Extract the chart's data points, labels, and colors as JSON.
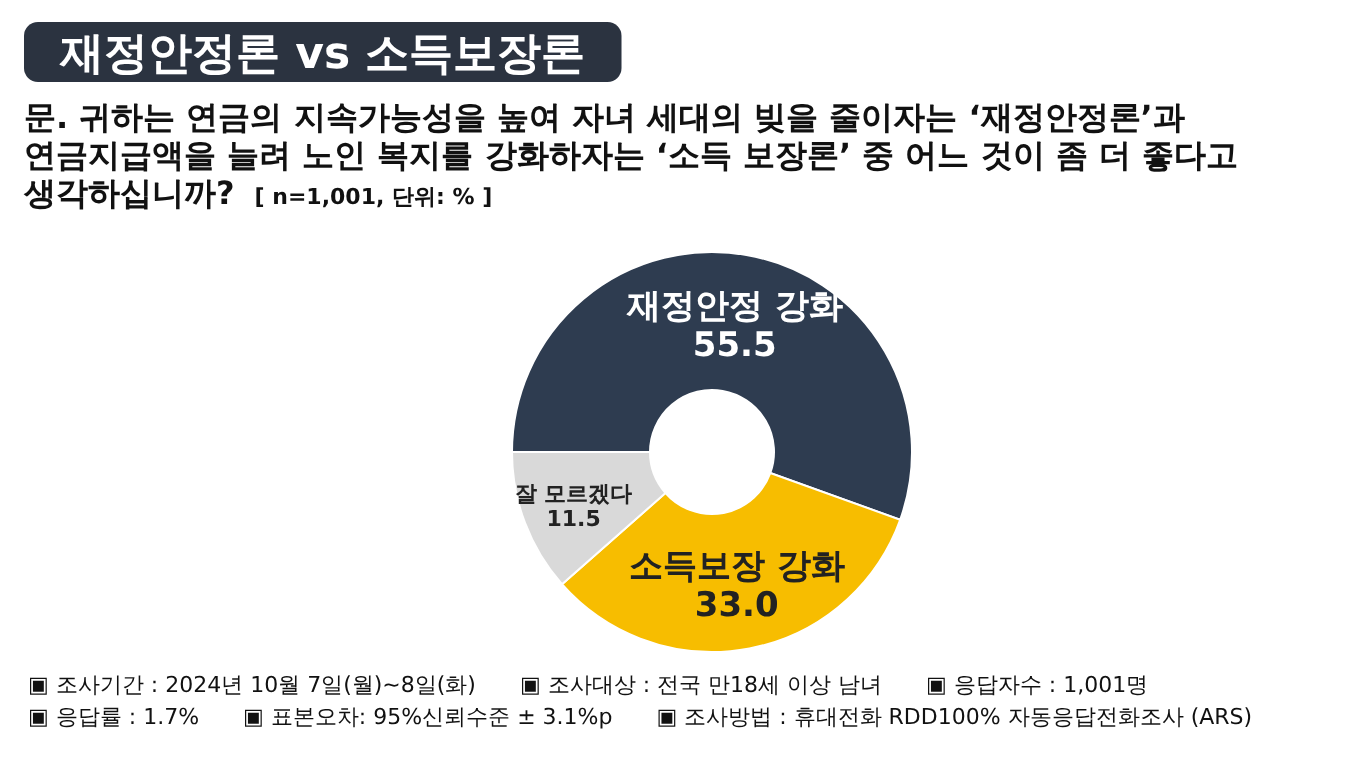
{
  "chart_data": {
    "type": "donut",
    "title": "재정안정론 vs 소득보장론",
    "subtitle": "문. 귀하는 연금의 지속가능성을 높여 자녀 세대의 빚을 줄이자는 ‘재정안정론’과 연금지급액을 늘려 노인 복지를 강화하자는 ‘소득 보장론’ 중 어느 것이 좀 더 좋다고 생각하십니까?",
    "categories": [
      "재정안정 강화",
      "소득보장 강화",
      "잘 모르겠다"
    ],
    "values": [
      55.5,
      33.0,
      11.5
    ],
    "value_labels": [
      "55.5",
      "33.0",
      "11.5"
    ],
    "colors": [
      "#2e3c50",
      "#f7bd00",
      "#d9d9d9"
    ],
    "annotations": [
      "[ n=1,001, 단위: % ]",
      "▣ 조사기간 : 2024년 10월 7일(월)~8일(화)",
      "▣ 조사대상 : 전국 만18세 이상 남녀",
      "▣ 응답자수 : 1,001명",
      "▣ 응답률 : 1.7%",
      "▣ 표본오차: 95%신뢰수준 ± 3.1%p",
      "▣ 조사방법 : 휴대전화 RDD100% 자동응답전화조사 (ARS)"
    ]
  }
}
